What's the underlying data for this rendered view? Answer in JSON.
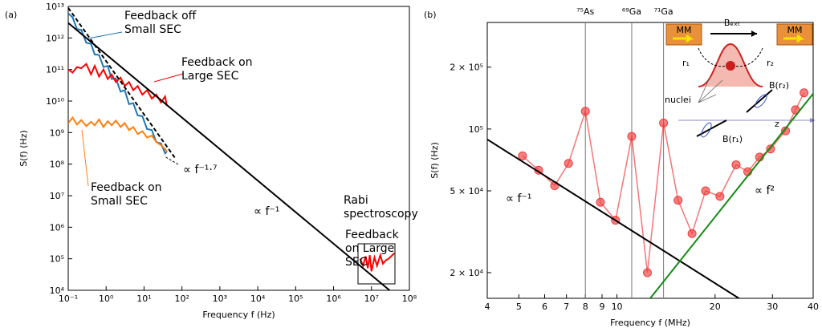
{
  "chart_data": [
    {
      "type": "line",
      "panel_label": "(a)",
      "xlabel": "Frequency f (Hz)",
      "ylabel": "S(f) (Hz)",
      "xscale": "log",
      "yscale": "log",
      "xlim": [
        0.1,
        100000000
      ],
      "ylim": [
        10000,
        10000000000000
      ],
      "xticks": [
        {
          "value": 0.1,
          "label": "10⁻¹"
        },
        {
          "value": 1,
          "label": "10⁰"
        },
        {
          "value": 10,
          "label": "10¹"
        },
        {
          "value": 100,
          "label": "10²"
        },
        {
          "value": 1000,
          "label": "10³"
        },
        {
          "value": 10000,
          "label": "10⁴"
        },
        {
          "value": 100000,
          "label": "10⁵"
        },
        {
          "value": 1000000,
          "label": "10⁶"
        },
        {
          "value": 10000000,
          "label": "10⁷"
        },
        {
          "value": 100000000,
          "label": "10⁸"
        }
      ],
      "yticks": [
        {
          "value": 10000,
          "label": "10⁴"
        },
        {
          "value": 100000,
          "label": "10⁵"
        },
        {
          "value": 1000000,
          "label": "10⁶"
        },
        {
          "value": 10000000,
          "label": "10⁷"
        },
        {
          "value": 100000000,
          "label": "10⁸"
        },
        {
          "value": 1000000000,
          "label": "10⁹"
        },
        {
          "value": 10000000000,
          "label": "10¹⁰"
        },
        {
          "value": 100000000000,
          "label": "10¹¹"
        },
        {
          "value": 1000000000000,
          "label": "10¹²"
        },
        {
          "value": 10000000000000,
          "label": "10¹³"
        }
      ],
      "annotations": [
        "Rabi spectroscopy"
      ],
      "series": [
        {
          "name": "Feedback off Small SEC",
          "color": "#1f77b4",
          "x": [
            0.1,
            0.13,
            0.17,
            0.22,
            0.3,
            0.4,
            0.5,
            0.65,
            0.85,
            1.1,
            1.4,
            1.8,
            2.4,
            3.1,
            4,
            5.2,
            6.8,
            9,
            12,
            16,
            21,
            28,
            36,
            40
          ],
          "values": [
            6000000000000.0,
            4500000000000.0,
            1900000000000.0,
            1800000000000.0,
            700000000000.0,
            650000000000.0,
            300000000000.0,
            290000000000.0,
            120000000000.0,
            130000000000.0,
            50000000000.0,
            52000000000.0,
            20000000000.0,
            22000000000.0,
            8000000000.0,
            8500000000.0,
            3500000000.0,
            3300000000.0,
            1300000000.0,
            1200000000.0,
            500000000.0,
            450000000.0,
            220000000.0,
            250000000.0
          ]
        },
        {
          "name": "Feedback on Large SEC",
          "color": "#ff0000",
          "x": [
            0.1,
            0.13,
            0.17,
            0.22,
            0.3,
            0.4,
            0.5,
            0.65,
            0.85,
            1.1,
            1.4,
            1.8,
            2.4,
            3.1,
            4,
            5.2,
            6.8,
            9,
            12,
            16,
            21,
            28,
            36,
            40
          ],
          "values": [
            100000000000.0,
            80000000000.0,
            120000000000.0,
            110000000000.0,
            150000000000.0,
            70000000000.0,
            130000000000.0,
            60000000000.0,
            100000000000.0,
            50000000000.0,
            70000000000.0,
            40000000000.0,
            55000000000.0,
            30000000000.0,
            40000000000.0,
            22000000000.0,
            30000000000.0,
            16000000000.0,
            22000000000.0,
            12000000000.0,
            16000000000.0,
            9000000000.0,
            14000000000.0,
            7000000000.0
          ]
        },
        {
          "name": "Feedback on Small SEC",
          "color": "#ff7f0e",
          "x": [
            0.1,
            0.13,
            0.17,
            0.22,
            0.3,
            0.4,
            0.5,
            0.65,
            0.85,
            1.1,
            1.4,
            1.8,
            2.4,
            3.1,
            4,
            5.2,
            6.8,
            9,
            12,
            16,
            21,
            28,
            36,
            40
          ],
          "values": [
            2000000000.0,
            3000000000.0,
            1800000000.0,
            2500000000.0,
            1600000000.0,
            2200000000.0,
            1700000000.0,
            2600000000.0,
            1500000000.0,
            2300000000.0,
            1700000000.0,
            2400000000.0,
            1500000000.0,
            2000000000.0,
            1200000000.0,
            1500000000.0,
            900000000.0,
            1100000000.0,
            700000000.0,
            800000000.0,
            500000000.0,
            400000000.0,
            300000000.0,
            250000000.0
          ]
        },
        {
          "name": "Feedback on Large SEC",
          "color": "#ff0000",
          "x": [
            5000000,
            6000000,
            7000000,
            8000000,
            9000000,
            10000000,
            12000000,
            14000000,
            17000000,
            20000000,
            24000000,
            28000000,
            33000000,
            40000000
          ],
          "values": [
            100000,
            60000,
            120000,
            50000,
            130000,
            40000,
            110000,
            60000,
            130000,
            70000,
            90000,
            100000,
            120000,
            150000
          ]
        },
        {
          "name": "∝ f⁻¹·⁷",
          "color": "#000000",
          "dash": true,
          "x": [
            0.1,
            70
          ],
          "values": [
            9000000000000.0,
            140000000.0
          ]
        },
        {
          "name": "∝ f⁻¹",
          "color": "#000000",
          "x": [
            0.1,
            30000000
          ],
          "values": [
            3000000000000.0,
            10000
          ]
        }
      ]
    },
    {
      "type": "line",
      "panel_label": "(b)",
      "xlabel": "Frequency f (MHz)",
      "ylabel": "S(f) (Hz)",
      "xscale": "log",
      "yscale": "log",
      "xlim": [
        4,
        40
      ],
      "ylim": [
        15000,
        330000
      ],
      "xticks": [
        4,
        5,
        6,
        7,
        8,
        9,
        10,
        20,
        30,
        40
      ],
      "yticks": [
        {
          "value": 20000,
          "label": "2 × 10⁴"
        },
        {
          "value": 50000,
          "label": "5 × 10⁴"
        },
        {
          "value": 100000,
          "label": "10⁵"
        },
        {
          "value": 200000,
          "label": "2 × 10⁵"
        }
      ],
      "vlines": [
        {
          "value": 8,
          "label": "⁷⁵As"
        },
        {
          "value": 11.1,
          "label": "⁶⁹Ga"
        },
        {
          "value": 13.9,
          "label": "⁷¹Ga"
        }
      ],
      "inset_labels": [
        "MM",
        "Bₑₓₜ",
        "MM",
        "r₁",
        "r₂",
        "nuclei",
        "B(r₂)",
        "B(r₁)",
        "z"
      ],
      "series": [
        {
          "color": "#f03c3c",
          "marker": true,
          "x": [
            5.13,
            5.75,
            6.44,
            7.1,
            8.0,
            8.9,
            9.9,
            11.1,
            12.4,
            13.9,
            15.4,
            17.0,
            18.7,
            20.7,
            23.2,
            25.2,
            27.4,
            29.6,
            32.9,
            35.3,
            37.5
          ],
          "values": [
            74000,
            63000,
            53000,
            68000,
            122000,
            44000,
            36000,
            92000,
            20000,
            107000,
            45000,
            31000,
            50000,
            47000,
            67000,
            62000,
            73000,
            80000,
            98000,
            124000,
            150000
          ]
        },
        {
          "name": "∝ f⁻¹",
          "color": "#000000",
          "x": [
            4,
            24
          ],
          "values": [
            89000,
            14800
          ]
        },
        {
          "name": "∝ f²",
          "color": "#138a13",
          "x": [
            12.65,
            40
          ],
          "values": [
            15000,
            148600
          ]
        }
      ]
    }
  ]
}
